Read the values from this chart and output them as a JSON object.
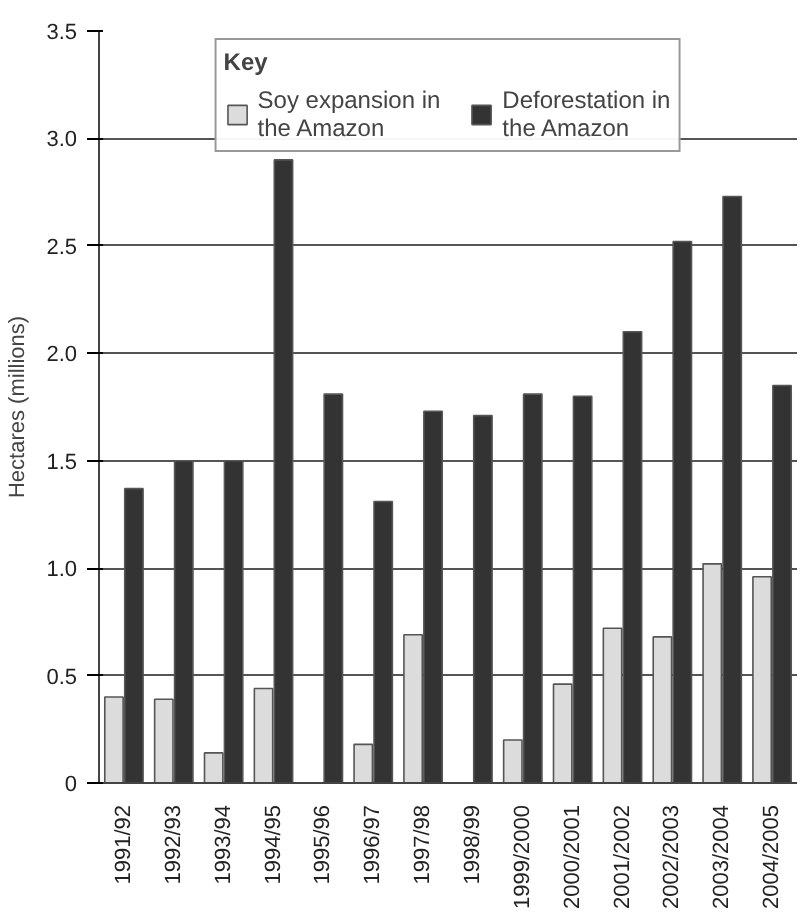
{
  "chart_data": {
    "type": "bar",
    "ylabel": "Hectares (millions)",
    "legend_title": "Key",
    "categories": [
      "1991/92",
      "1992/93",
      "1993/94",
      "1994/95",
      "1995/96",
      "1996/97",
      "1997/98",
      "1998/99",
      "1999/2000",
      "2000/2001",
      "2001/2002",
      "2002/2003",
      "2003/2004",
      "2004/2005"
    ],
    "series": [
      {
        "name": "Soy expansion in the Amazon",
        "color": "#dcdcdc",
        "values": [
          0.4,
          0.39,
          0.14,
          0.44,
          null,
          0.18,
          0.69,
          null,
          0.2,
          0.46,
          0.72,
          0.68,
          1.02,
          0.96
        ]
      },
      {
        "name": "Deforestation in the Amazon",
        "color": "#333333",
        "values": [
          1.37,
          1.5,
          1.5,
          2.9,
          1.81,
          1.31,
          1.73,
          1.71,
          1.81,
          1.8,
          2.1,
          2.52,
          2.73,
          1.85
        ]
      }
    ],
    "ylim": [
      0,
      3.5
    ],
    "yticks": [
      0,
      0.5,
      {
        "value": 1,
        "label": "1.0"
      },
      1.5,
      {
        "value": 2,
        "label": "2.0"
      },
      2.5,
      {
        "value": 3,
        "label": "3.0"
      },
      3.5
    ],
    "grid": "y",
    "legend": "top"
  }
}
